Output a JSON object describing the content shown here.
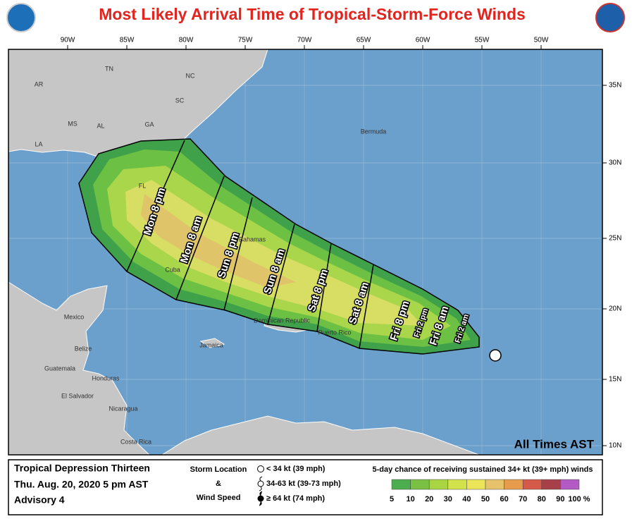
{
  "header": {
    "title": "Most Likely Arrival Time of Tropical-Storm-Force Winds"
  },
  "map": {
    "lon_labels": [
      "90W",
      "85W",
      "80W",
      "75W",
      "70W",
      "65W",
      "60W",
      "55W",
      "50W"
    ],
    "lat_labels": [
      "35N",
      "30N",
      "25N",
      "20N",
      "15N",
      "10N"
    ],
    "places": [
      "TN",
      "NC",
      "SC",
      "AR",
      "MS",
      "AL",
      "GA",
      "LA",
      "FL",
      "Bermuda",
      "Bahamas",
      "Cuba",
      "Jamaica",
      "Dominican Republic",
      "Puerto Rico",
      "Mexico",
      "Belize",
      "Guatemala",
      "Honduras",
      "El Salvador",
      "Nicaragua",
      "Costa Rica"
    ],
    "times": [
      "Mon 8 pm",
      "Mon 8 am",
      "Sun 8 pm",
      "Sun 8 am",
      "Sat 8 pm",
      "Sat 8 am",
      "Fri 8 pm",
      "Fri 2 pm",
      "Fri 8 am",
      "Fri 2 am"
    ],
    "note": "All Times AST"
  },
  "footer": {
    "storm": "Tropical Depression Thirteen",
    "date": "Thu. Aug. 20, 2020  5 pm AST",
    "advisory": "Advisory 4",
    "key": {
      "title": "Storm Location",
      "amp": "&",
      "sub": "Wind Speed",
      "items": [
        "< 34 kt (39 mph)",
        "34-63 kt (39-73 mph)",
        "≥ 64 kt (74 mph)"
      ]
    },
    "scale": {
      "title": "5-day chance of receiving sustained 34+ kt (39+ mph) winds",
      "labels": [
        "5",
        "10",
        "20",
        "30",
        "40",
        "50",
        "60",
        "70",
        "80",
        "90",
        "100 %"
      ]
    }
  }
}
